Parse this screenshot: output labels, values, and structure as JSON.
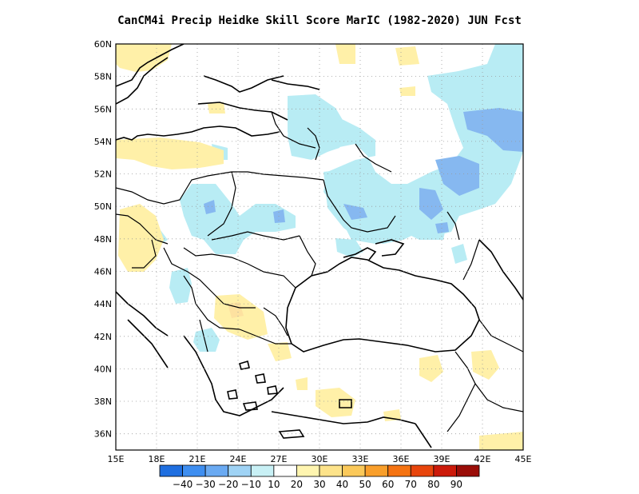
{
  "title": "CanCM4i Precip Heidke Skill Score MarIC (1982-2020) JUN Fcst",
  "map": {
    "lon_range": [
      15,
      45
    ],
    "lat_range": [
      35,
      60
    ],
    "lon_ticks": [
      "15E",
      "18E",
      "21E",
      "24E",
      "27E",
      "30E",
      "33E",
      "36E",
      "39E",
      "42E",
      "45E"
    ],
    "lat_ticks": [
      "36N",
      "38N",
      "40N",
      "42N",
      "44N",
      "46N",
      "48N",
      "50N",
      "52N",
      "54N",
      "56N",
      "58N",
      "60N"
    ],
    "grid": "dotted"
  },
  "colorbar": {
    "labels": [
      "-40",
      "-30",
      "-20",
      "-10",
      "10",
      "20",
      "30",
      "40",
      "50",
      "60",
      "70",
      "80",
      "90"
    ],
    "colors": [
      "#1f6fe0",
      "#3e8ef0",
      "#6aaaf2",
      "#9fd3f5",
      "#c8f0f5",
      "#ffffff",
      "#fff5b0",
      "#fde38a",
      "#fbc95a",
      "#f99f2b",
      "#f57311",
      "#e8450c",
      "#cc1a0a",
      "#9a0d08"
    ]
  },
  "legend_colors": {
    "neg_light": "#b8ecf4",
    "neg_mid": "#86b8f0",
    "neg_dark": "#5d92ec",
    "pos_light": "#fff0a8",
    "pos_mid": "#fde7a0"
  }
}
